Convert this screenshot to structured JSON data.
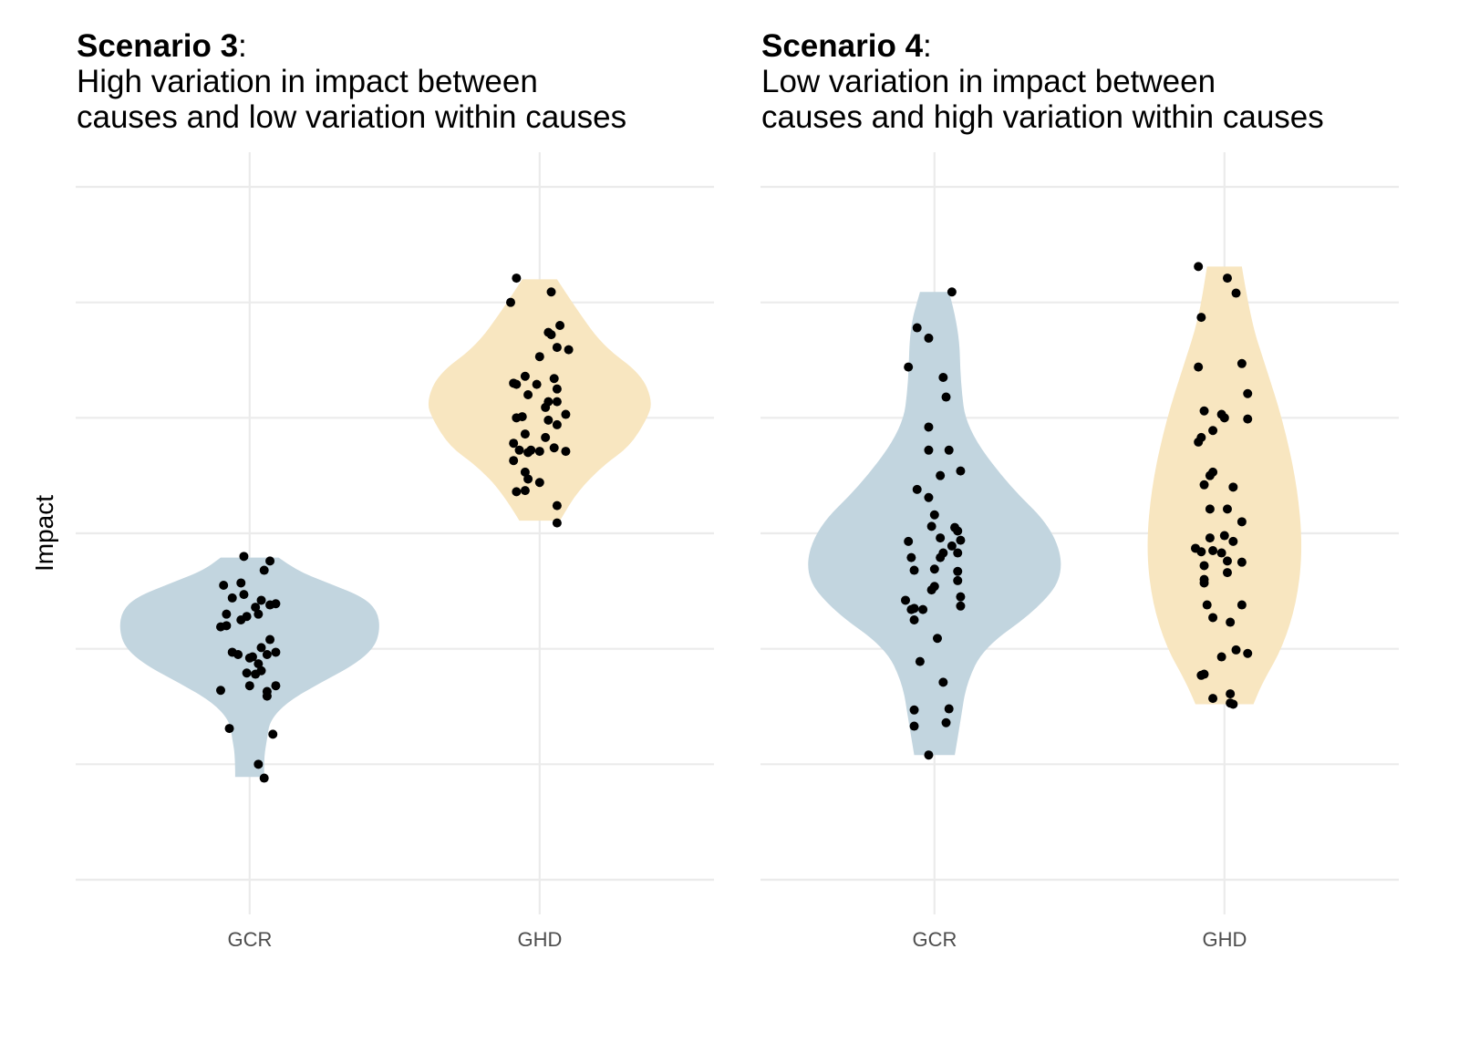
{
  "chart_data": [
    {
      "type": "violin",
      "title_bold": "Scenario 3",
      "title_colon": ":",
      "subtitle_lines": [
        "High variation in impact between",
        "causes and low variation within causes"
      ],
      "xlabel": "",
      "ylabel": "Impact",
      "categories": [
        "GCR",
        "GHD"
      ],
      "ylim": [
        -3.3,
        3.3
      ],
      "grid": true,
      "y_tick_labels_shown": false,
      "colors": {
        "GCR": "#c2d5df",
        "GHD": "#f8e6c0"
      },
      "violins": {
        "GCR": [
          [
            -0.21,
            0.1
          ],
          [
            -0.32,
            0.16
          ],
          [
            -0.43,
            0.27
          ],
          [
            -0.55,
            0.39
          ],
          [
            -0.67,
            0.44
          ],
          [
            -0.83,
            0.45
          ],
          [
            -0.99,
            0.43
          ],
          [
            -1.14,
            0.36
          ],
          [
            -1.3,
            0.24
          ],
          [
            -1.46,
            0.13
          ],
          [
            -1.62,
            0.07
          ],
          [
            -1.78,
            0.06
          ],
          [
            -1.93,
            0.05
          ],
          [
            -2.11,
            0.05
          ]
        ],
        "GHD": [
          [
            2.2,
            0.06
          ],
          [
            1.93,
            0.13
          ],
          [
            1.62,
            0.22
          ],
          [
            1.38,
            0.35
          ],
          [
            1.14,
            0.39
          ],
          [
            0.99,
            0.37
          ],
          [
            0.75,
            0.31
          ],
          [
            0.59,
            0.22
          ],
          [
            0.36,
            0.13
          ],
          [
            0.11,
            0.07
          ]
        ]
      },
      "points": {
        "GCR": [
          [
            -0.02,
            -0.2
          ],
          [
            0.07,
            -0.24
          ],
          [
            0.05,
            -0.32
          ],
          [
            -0.09,
            -0.45
          ],
          [
            -0.03,
            -0.43
          ],
          [
            -0.06,
            -0.56
          ],
          [
            -0.02,
            -0.53
          ],
          [
            0.04,
            -0.58
          ],
          [
            0.07,
            -0.62
          ],
          [
            0.09,
            -0.61
          ],
          [
            0.02,
            -0.64
          ],
          [
            -0.08,
            -0.7
          ],
          [
            -0.1,
            -0.81
          ],
          [
            -0.08,
            -0.8
          ],
          [
            -0.01,
            -0.72
          ],
          [
            -0.03,
            -0.75
          ],
          [
            0.03,
            -0.7
          ],
          [
            -0.06,
            -1.03
          ],
          [
            -0.04,
            -1.05
          ],
          [
            0.01,
            -1.07
          ],
          [
            0.0,
            -1.08
          ],
          [
            0.04,
            -0.99
          ],
          [
            0.07,
            -0.92
          ],
          [
            0.09,
            -1.03
          ],
          [
            0.06,
            -1.05
          ],
          [
            0.03,
            -1.13
          ],
          [
            -0.01,
            -1.21
          ],
          [
            0.02,
            -1.22
          ],
          [
            0.04,
            -1.19
          ],
          [
            0.09,
            -1.32
          ],
          [
            0.0,
            -1.32
          ],
          [
            0.06,
            -1.37
          ],
          [
            0.06,
            -1.41
          ],
          [
            -0.1,
            -1.36
          ],
          [
            -0.07,
            -1.69
          ],
          [
            0.08,
            -1.74
          ],
          [
            0.03,
            -2.0
          ],
          [
            0.05,
            -2.12
          ]
        ],
        "GHD": [
          [
            -0.08,
            2.21
          ],
          [
            -0.1,
            2.0
          ],
          [
            0.04,
            2.09
          ],
          [
            0.07,
            1.8
          ],
          [
            0.03,
            1.74
          ],
          [
            0.04,
            1.72
          ],
          [
            0.06,
            1.61
          ],
          [
            0.1,
            1.59
          ],
          [
            0.0,
            1.53
          ],
          [
            -0.05,
            1.36
          ],
          [
            -0.09,
            1.3
          ],
          [
            -0.08,
            1.29
          ],
          [
            -0.01,
            1.29
          ],
          [
            0.05,
            1.34
          ],
          [
            0.06,
            1.25
          ],
          [
            -0.04,
            1.2
          ],
          [
            0.03,
            1.14
          ],
          [
            0.06,
            1.14
          ],
          [
            0.02,
            1.09
          ],
          [
            0.09,
            1.03
          ],
          [
            -0.08,
            1.0
          ],
          [
            -0.06,
            1.01
          ],
          [
            0.03,
            0.98
          ],
          [
            0.06,
            0.94
          ],
          [
            -0.05,
            0.86
          ],
          [
            0.02,
            0.83
          ],
          [
            -0.09,
            0.78
          ],
          [
            -0.07,
            0.72
          ],
          [
            -0.03,
            0.72
          ],
          [
            0.0,
            0.71
          ],
          [
            0.05,
            0.74
          ],
          [
            0.09,
            0.71
          ],
          [
            -0.09,
            0.63
          ],
          [
            -0.04,
            0.7
          ],
          [
            -0.05,
            0.53
          ],
          [
            0.0,
            0.44
          ],
          [
            -0.04,
            0.47
          ],
          [
            -0.08,
            0.36
          ],
          [
            -0.05,
            0.37
          ],
          [
            0.06,
            0.24
          ],
          [
            0.06,
            0.09
          ]
        ]
      }
    },
    {
      "type": "violin",
      "title_bold": "Scenario 4",
      "title_colon": ":",
      "subtitle_lines": [
        "Low variation in impact between",
        "causes and high variation within causes"
      ],
      "xlabel": "",
      "ylabel": "",
      "categories": [
        "GCR",
        "GHD"
      ],
      "ylim": [
        -3.3,
        3.3
      ],
      "grid": true,
      "y_tick_labels_shown": false,
      "colors": {
        "GCR": "#c2d5df",
        "GHD": "#f8e6c0"
      },
      "violins": {
        "GCR": [
          [
            2.09,
            0.05
          ],
          [
            1.78,
            0.085
          ],
          [
            1.3,
            0.09
          ],
          [
            0.91,
            0.11
          ],
          [
            0.43,
            0.25
          ],
          [
            0.04,
            0.41
          ],
          [
            -0.36,
            0.45
          ],
          [
            -0.67,
            0.35
          ],
          [
            -0.99,
            0.17
          ],
          [
            -1.3,
            0.11
          ],
          [
            -1.62,
            0.09
          ],
          [
            -1.92,
            0.07
          ]
        ],
        "GHD": [
          [
            2.31,
            0.06
          ],
          [
            1.85,
            0.09
          ],
          [
            1.46,
            0.14
          ],
          [
            0.99,
            0.2
          ],
          [
            0.43,
            0.25
          ],
          [
            -0.12,
            0.27
          ],
          [
            -0.59,
            0.25
          ],
          [
            -0.99,
            0.2
          ],
          [
            -1.3,
            0.13
          ],
          [
            -1.48,
            0.1
          ]
        ]
      },
      "points": {
        "GCR": [
          [
            0.06,
            2.09
          ],
          [
            -0.06,
            1.78
          ],
          [
            -0.02,
            1.69
          ],
          [
            -0.09,
            1.44
          ],
          [
            0.03,
            1.35
          ],
          [
            0.04,
            1.18
          ],
          [
            -0.02,
            0.92
          ],
          [
            -0.02,
            0.72
          ],
          [
            0.05,
            0.72
          ],
          [
            0.09,
            0.54
          ],
          [
            0.02,
            0.5
          ],
          [
            -0.06,
            0.38
          ],
          [
            -0.02,
            0.31
          ],
          [
            0.0,
            0.16
          ],
          [
            -0.01,
            0.06
          ],
          [
            0.07,
            0.05
          ],
          [
            0.08,
            0.02
          ],
          [
            0.02,
            -0.04
          ],
          [
            -0.09,
            -0.07
          ],
          [
            0.09,
            -0.06
          ],
          [
            0.06,
            -0.11
          ],
          [
            0.03,
            -0.17
          ],
          [
            0.08,
            -0.17
          ],
          [
            -0.08,
            -0.21
          ],
          [
            0.02,
            -0.21
          ],
          [
            0.0,
            -0.31
          ],
          [
            -0.07,
            -0.32
          ],
          [
            0.08,
            -0.33
          ],
          [
            0.08,
            -0.41
          ],
          [
            0.0,
            -0.46
          ],
          [
            -0.01,
            -0.49
          ],
          [
            0.09,
            -0.55
          ],
          [
            -0.1,
            -0.58
          ],
          [
            0.09,
            -0.63
          ],
          [
            -0.04,
            -0.66
          ],
          [
            -0.08,
            -0.66
          ],
          [
            -0.07,
            -0.65
          ],
          [
            -0.07,
            -0.75
          ],
          [
            0.01,
            -0.91
          ],
          [
            -0.05,
            -1.11
          ],
          [
            0.03,
            -1.29
          ],
          [
            -0.07,
            -1.53
          ],
          [
            0.05,
            -1.52
          ],
          [
            -0.07,
            -1.67
          ],
          [
            0.04,
            -1.64
          ],
          [
            -0.02,
            -1.92
          ]
        ],
        "GHD": [
          [
            -0.09,
            2.31
          ],
          [
            0.01,
            2.21
          ],
          [
            0.04,
            2.08
          ],
          [
            -0.08,
            1.87
          ],
          [
            0.06,
            1.47
          ],
          [
            -0.09,
            1.44
          ],
          [
            0.08,
            1.21
          ],
          [
            -0.07,
            1.06
          ],
          [
            -0.01,
            1.03
          ],
          [
            0.0,
            1.0
          ],
          [
            0.08,
            0.99
          ],
          [
            -0.04,
            0.89
          ],
          [
            -0.08,
            0.83
          ],
          [
            -0.09,
            0.79
          ],
          [
            -0.04,
            0.53
          ],
          [
            -0.05,
            0.5
          ],
          [
            -0.07,
            0.42
          ],
          [
            0.03,
            0.4
          ],
          [
            -0.05,
            0.21
          ],
          [
            0.01,
            0.21
          ],
          [
            0.06,
            0.1
          ],
          [
            0.0,
            -0.02
          ],
          [
            -0.05,
            -0.04
          ],
          [
            0.03,
            -0.07
          ],
          [
            -0.1,
            -0.13
          ],
          [
            -0.08,
            -0.16
          ],
          [
            -0.04,
            -0.15
          ],
          [
            -0.01,
            -0.17
          ],
          [
            0.06,
            -0.25
          ],
          [
            -0.07,
            -0.28
          ],
          [
            0.01,
            -0.24
          ],
          [
            0.01,
            -0.34
          ],
          [
            -0.07,
            -0.4
          ],
          [
            -0.07,
            -0.43
          ],
          [
            -0.06,
            -0.62
          ],
          [
            0.06,
            -0.62
          ],
          [
            0.02,
            -0.77
          ],
          [
            -0.04,
            -0.73
          ],
          [
            0.04,
            -1.01
          ],
          [
            0.08,
            -1.04
          ],
          [
            -0.01,
            -1.07
          ],
          [
            -0.07,
            -1.22
          ],
          [
            -0.08,
            -1.23
          ],
          [
            0.02,
            -1.39
          ],
          [
            -0.04,
            -1.43
          ],
          [
            0.02,
            -1.47
          ],
          [
            0.03,
            -1.48
          ]
        ]
      }
    }
  ]
}
